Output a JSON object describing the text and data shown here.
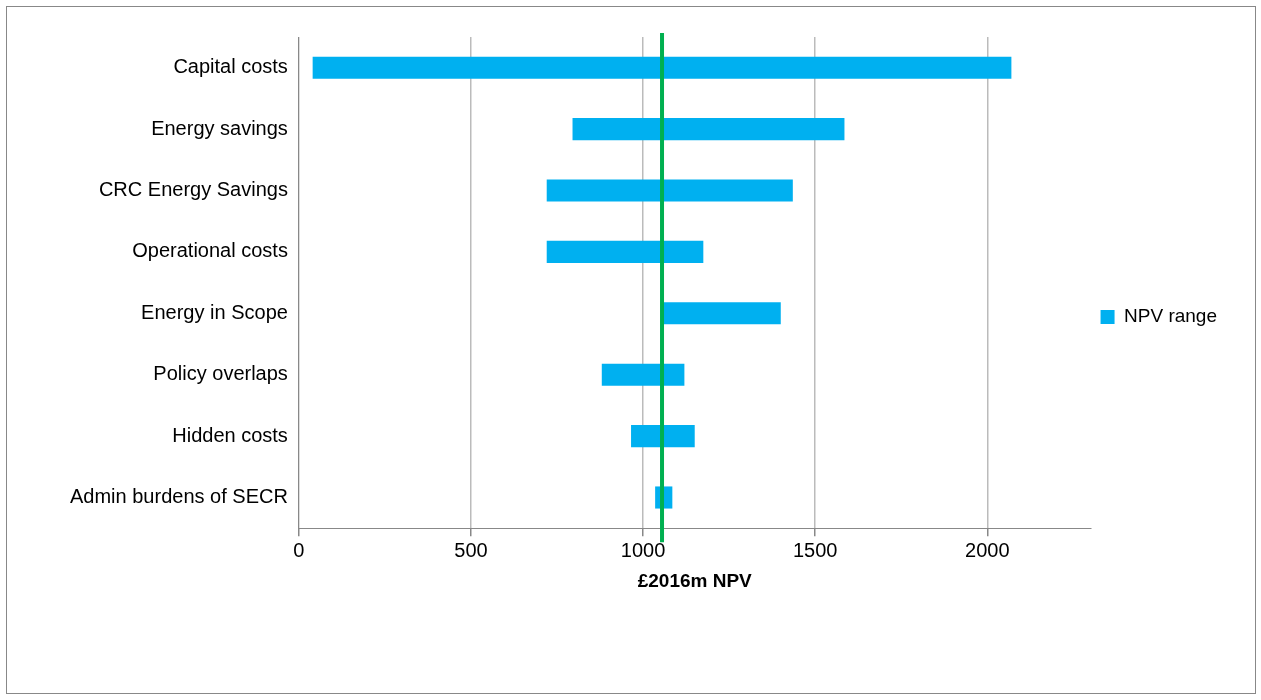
{
  "chart_data": {
    "type": "bar",
    "orientation": "horizontal",
    "xlabel": "£2016m NPV",
    "categories": [
      "Capital costs",
      "Energy savings",
      "CRC Energy Savings",
      "Operational costs",
      "Energy in Scope",
      "Policy overlaps",
      "Hidden costs",
      "Admin burdens of SECR"
    ],
    "series": [
      {
        "name": "NPV range",
        "color": "#00b0f0",
        "base": [
          40,
          795,
          720,
          720,
          1060,
          880,
          965,
          1035
        ],
        "values": [
          2030,
          790,
          715,
          455,
          340,
          240,
          185,
          50
        ]
      }
    ],
    "xlim": [
      0,
      2300
    ],
    "xticks": [
      0,
      500,
      1000,
      1500,
      2000
    ],
    "grid": "x",
    "legend": "right",
    "ref_lines": [
      {
        "axis": "x",
        "value": 1055,
        "color": "#00b050"
      }
    ]
  }
}
